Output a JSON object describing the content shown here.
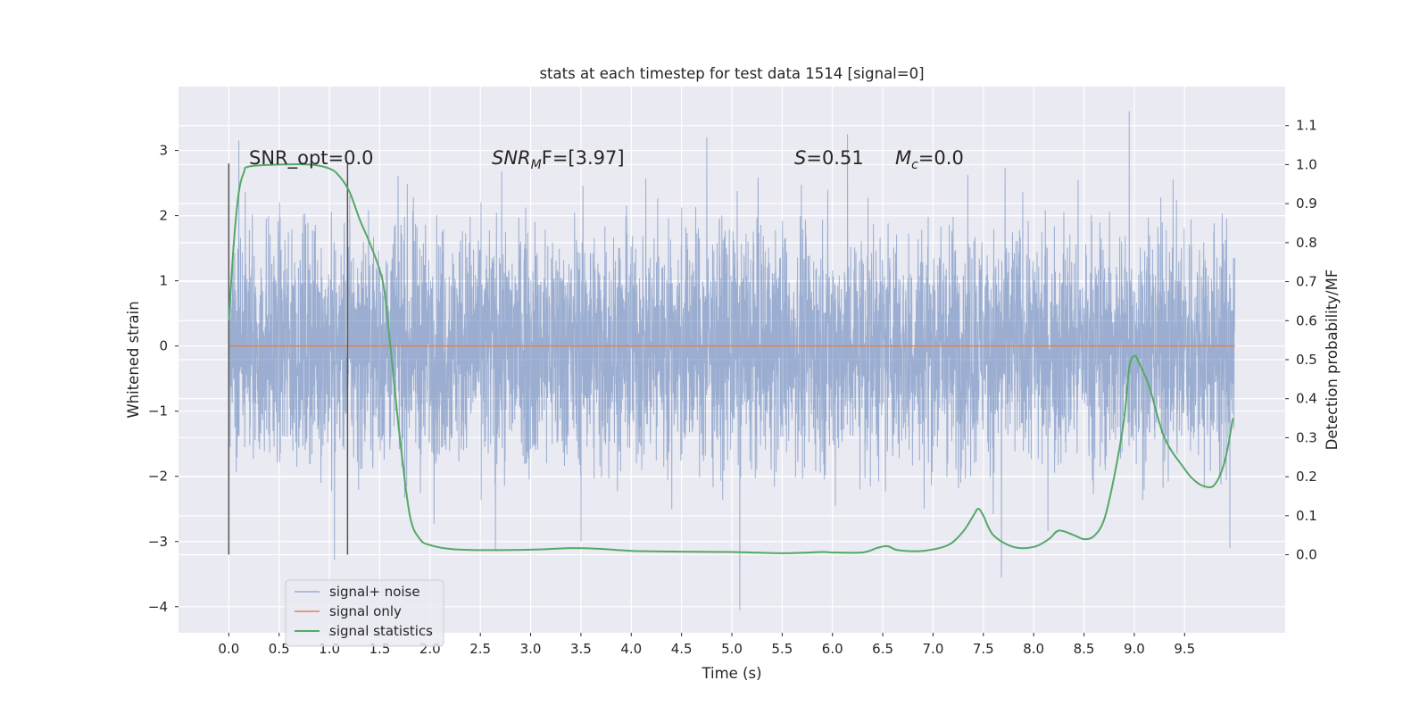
{
  "chart_data": {
    "type": "line",
    "title": "stats at each timestep for test data 1514 [signal=0]",
    "xlabel": "Time (s)",
    "ylabel_left": "Whitened strain",
    "ylabel_right": "Detection probability/MF",
    "xlim": [
      -0.5,
      10.5
    ],
    "ylim_left": [
      -4.4,
      3.98
    ],
    "ylim_right": [
      -0.2,
      1.2
    ],
    "x_ticks": [
      0.0,
      0.5,
      1.0,
      1.5,
      2.0,
      2.5,
      3.0,
      3.5,
      4.0,
      4.5,
      5.0,
      5.5,
      6.0,
      6.5,
      7.0,
      7.5,
      8.0,
      8.5,
      9.0,
      9.5
    ],
    "x_tick_labels": [
      "0.0",
      "0.5",
      "1.0",
      "1.5",
      "2.0",
      "2.5",
      "3.0",
      "3.5",
      "4.0",
      "4.5",
      "5.0",
      "5.5",
      "6.0",
      "6.5",
      "7.0",
      "7.5",
      "8.0",
      "8.5",
      "9.0",
      "9.5"
    ],
    "y_left_ticks": [
      -4,
      -3,
      -2,
      -1,
      0,
      1,
      2,
      3
    ],
    "y_left_tick_labels": [
      "−4",
      "−3",
      "−2",
      "−1",
      "0",
      "1",
      "2",
      "3"
    ],
    "y_right_ticks": [
      0.0,
      0.1,
      0.2,
      0.3,
      0.4,
      0.5,
      0.6,
      0.7,
      0.8,
      0.9,
      1.0,
      1.1
    ],
    "y_right_tick_labels": [
      "0.0",
      "0.1",
      "0.2",
      "0.3",
      "0.4",
      "0.5",
      "0.6",
      "0.7",
      "0.8",
      "0.9",
      "1.0",
      "1.1"
    ],
    "grid": true,
    "legend_position": "lower-left",
    "series": [
      {
        "name": "signal+ noise",
        "axis": "left",
        "color": "#4c72b0",
        "opacity": 0.5,
        "x_range": [
          0.0,
          10.0
        ],
        "typical_envelope": [
          -1.5,
          1.5
        ],
        "extremes": [
          {
            "x": 0.1,
            "y": 3.15
          },
          {
            "x": 2.65,
            "y": 3.42
          },
          {
            "x": 1.05,
            "y": -3.28
          },
          {
            "x": 2.65,
            "y": -3.15
          },
          {
            "x": 5.08,
            "y": -4.05
          },
          {
            "x": 7.68,
            "y": -3.55
          },
          {
            "x": 8.95,
            "y": 3.6
          },
          {
            "x": 9.95,
            "y": 3.35
          },
          {
            "x": 9.95,
            "y": -3.1
          },
          {
            "x": 3.5,
            "y": -3.0
          },
          {
            "x": 6.15,
            "y": 3.25
          },
          {
            "x": 4.75,
            "y": 3.2
          }
        ]
      },
      {
        "name": "signal only",
        "axis": "left",
        "color": "#dd8452",
        "x": [
          0.0,
          10.0
        ],
        "y": [
          0.0,
          0.0
        ]
      },
      {
        "name": "signal statistics",
        "axis": "right",
        "color": "#55a868",
        "x": [
          0.0,
          0.05,
          0.1,
          0.15,
          0.2,
          0.5,
          0.8,
          1.0,
          1.1,
          1.2,
          1.3,
          1.4,
          1.5,
          1.55,
          1.6,
          1.7,
          1.8,
          1.9,
          2.0,
          2.2,
          2.5,
          3.0,
          3.4,
          3.7,
          4.0,
          4.5,
          5.0,
          5.5,
          5.9,
          6.0,
          6.3,
          6.45,
          6.55,
          6.65,
          6.9,
          7.15,
          7.3,
          7.4,
          7.45,
          7.5,
          7.6,
          7.8,
          8.0,
          8.15,
          8.25,
          8.4,
          8.5,
          8.6,
          8.7,
          8.8,
          8.9,
          8.95,
          9.0,
          9.05,
          9.15,
          9.3,
          9.5,
          9.6,
          9.7,
          9.8,
          9.9,
          9.98
        ],
        "y": [
          0.6,
          0.8,
          0.93,
          0.98,
          0.995,
          1.0,
          1.0,
          0.99,
          0.97,
          0.93,
          0.86,
          0.8,
          0.73,
          0.67,
          0.55,
          0.3,
          0.1,
          0.04,
          0.025,
          0.015,
          0.012,
          0.013,
          0.017,
          0.015,
          0.01,
          0.008,
          0.007,
          0.004,
          0.007,
          0.006,
          0.006,
          0.018,
          0.022,
          0.012,
          0.01,
          0.025,
          0.06,
          0.1,
          0.118,
          0.1,
          0.05,
          0.02,
          0.02,
          0.04,
          0.062,
          0.05,
          0.04,
          0.048,
          0.09,
          0.2,
          0.35,
          0.48,
          0.51,
          0.49,
          0.43,
          0.3,
          0.22,
          0.19,
          0.175,
          0.18,
          0.24,
          0.35
        ]
      }
    ],
    "vertical_markers": [
      {
        "x": 0.0,
        "y_range": [
          -3.2,
          2.8
        ]
      },
      {
        "x": 1.18,
        "y_range": [
          -3.2,
          2.8
        ]
      }
    ],
    "annotations": [
      {
        "text": "SNR_opt=0.0",
        "x": 0.2,
        "y": 2.9
      },
      {
        "symbol": "SNR",
        "subscript": "M",
        "text": "F=[3.97]",
        "x": 2.6,
        "y": 2.9
      },
      {
        "symbol": "S",
        "text": "=0.51",
        "x": 5.6,
        "y": 2.9
      },
      {
        "symbol": "M",
        "subscript": "c",
        "text": "=0.0",
        "x": 6.6,
        "y": 2.9
      }
    ]
  }
}
